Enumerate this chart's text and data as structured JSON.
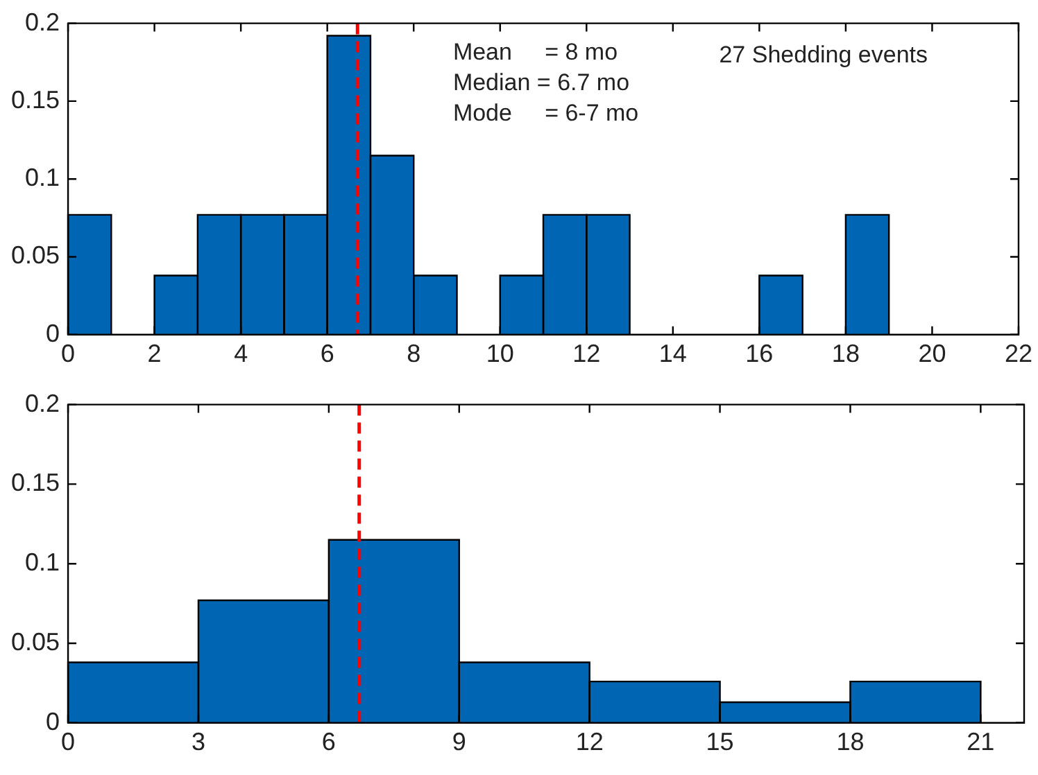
{
  "chart_data": [
    {
      "type": "histogram",
      "bins": [
        0,
        1,
        2,
        3,
        4,
        5,
        6,
        7,
        8,
        9,
        10,
        11,
        12,
        13,
        14,
        15,
        16,
        17,
        18,
        19,
        20,
        21,
        22
      ],
      "values": [
        0.077,
        0,
        0.038,
        0.077,
        0.077,
        0.077,
        0.192,
        0.115,
        0.038,
        0,
        0.038,
        0.077,
        0.077,
        0,
        0,
        0,
        0.038,
        0,
        0.077,
        0,
        0,
        0
      ],
      "color": "#0066b3",
      "xlim": [
        0,
        22
      ],
      "xticks": [
        0,
        2,
        4,
        6,
        8,
        10,
        12,
        14,
        16,
        18,
        20,
        22
      ],
      "ylim": [
        0,
        0.2
      ],
      "yticks": [
        0,
        0.05,
        0.1,
        0.15,
        0.2
      ],
      "grid": false,
      "legend": false,
      "ref_lines": [
        {
          "axis": "x",
          "value": 6.7,
          "color": "#ff0000",
          "line_style": "dashed"
        }
      ],
      "annotations": [
        "Mean     = 8 mo",
        "Median = 6.7 mo",
        "Mode     = 6-7 mo",
        "27 Shedding events"
      ]
    },
    {
      "type": "histogram",
      "bins": [
        0,
        3,
        6,
        9,
        12,
        15,
        18,
        21
      ],
      "values": [
        0.038,
        0.077,
        0.115,
        0.038,
        0.026,
        0.013,
        0.026
      ],
      "color": "#0066b3",
      "xlim": [
        0,
        22
      ],
      "xticks": [
        0,
        3,
        6,
        9,
        12,
        15,
        18,
        21
      ],
      "ylim": [
        0,
        0.2
      ],
      "yticks": [
        0,
        0.05,
        0.1,
        0.15,
        0.2
      ],
      "grid": false,
      "legend": false,
      "ref_lines": [
        {
          "axis": "x",
          "value": 6.7,
          "color": "#ff0000",
          "line_style": "dashed"
        }
      ]
    }
  ]
}
